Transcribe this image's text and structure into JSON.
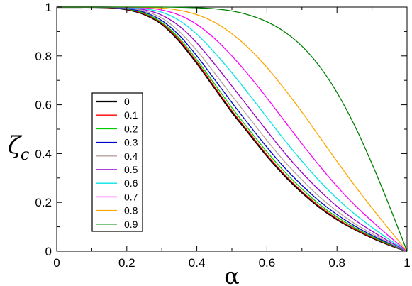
{
  "chart_data": {
    "type": "line",
    "xlabel": "α",
    "ylabel": "ζ",
    "ylabel_sub": "c",
    "xlim": [
      0,
      1
    ],
    "ylim": [
      0,
      1
    ],
    "x_ticks": [
      0,
      0.2,
      0.4,
      0.6,
      0.8,
      1
    ],
    "x_tick_labels": [
      "0",
      "0.2",
      "0.4",
      "0.6",
      "0.8",
      "1"
    ],
    "y_ticks": [
      0,
      0.2,
      0.4,
      0.6,
      0.8,
      1
    ],
    "y_tick_labels": [
      "0",
      "0.2",
      "0.4",
      "0.6",
      "0.8",
      "1"
    ],
    "grid": false,
    "legend_position": "left-center",
    "x": [
      0,
      0.05,
      0.1,
      0.15,
      0.2,
      0.25,
      0.3,
      0.35,
      0.4,
      0.45,
      0.5,
      0.55,
      0.6,
      0.65,
      0.7,
      0.75,
      0.8,
      0.85,
      0.9,
      0.95,
      1.0
    ],
    "series": [
      {
        "name": "0",
        "color": "#000000",
        "values": [
          1,
          1,
          1,
          0.998,
          0.99,
          0.97,
          0.93,
          0.86,
          0.77,
          0.67,
          0.57,
          0.48,
          0.39,
          0.31,
          0.24,
          0.18,
          0.13,
          0.09,
          0.055,
          0.025,
          0
        ]
      },
      {
        "name": "0.1",
        "color": "#ff0000",
        "values": [
          1,
          1,
          1,
          0.998,
          0.991,
          0.972,
          0.933,
          0.865,
          0.775,
          0.675,
          0.576,
          0.485,
          0.395,
          0.315,
          0.245,
          0.184,
          0.133,
          0.092,
          0.057,
          0.026,
          0
        ]
      },
      {
        "name": "0.2",
        "color": "#00cc00",
        "values": [
          1,
          1,
          1,
          0.999,
          0.992,
          0.975,
          0.937,
          0.872,
          0.784,
          0.686,
          0.588,
          0.496,
          0.407,
          0.326,
          0.255,
          0.192,
          0.14,
          0.097,
          0.06,
          0.028,
          0
        ]
      },
      {
        "name": "0.3",
        "color": "#0000cc",
        "values": [
          1,
          1,
          1,
          0.999,
          0.994,
          0.979,
          0.945,
          0.884,
          0.8,
          0.705,
          0.609,
          0.516,
          0.426,
          0.343,
          0.27,
          0.205,
          0.15,
          0.104,
          0.065,
          0.031,
          0
        ]
      },
      {
        "name": "0.4",
        "color": "#b5a29b",
        "values": [
          1,
          1,
          1,
          1,
          0.996,
          0.984,
          0.955,
          0.9,
          0.822,
          0.731,
          0.637,
          0.545,
          0.454,
          0.368,
          0.292,
          0.223,
          0.164,
          0.114,
          0.072,
          0.034,
          0
        ]
      },
      {
        "name": "0.5",
        "color": "#9900cc",
        "values": [
          1,
          1,
          1,
          1,
          0.997,
          0.989,
          0.967,
          0.922,
          0.853,
          0.768,
          0.677,
          0.585,
          0.493,
          0.404,
          0.322,
          0.249,
          0.184,
          0.129,
          0.082,
          0.039,
          0
        ]
      },
      {
        "name": "0.6",
        "color": "#00e5e5",
        "values": [
          1,
          1,
          1,
          1,
          0.998,
          0.993,
          0.979,
          0.945,
          0.889,
          0.815,
          0.731,
          0.641,
          0.548,
          0.456,
          0.369,
          0.288,
          0.216,
          0.153,
          0.098,
          0.047,
          0
        ]
      },
      {
        "name": "0.7",
        "color": "#ff00ff",
        "values": [
          1,
          1,
          1,
          1,
          0.999,
          0.997,
          0.988,
          0.967,
          0.929,
          0.872,
          0.8,
          0.718,
          0.628,
          0.534,
          0.44,
          0.35,
          0.266,
          0.19,
          0.123,
          0.06,
          0
        ]
      },
      {
        "name": "0.8",
        "color": "#ffa500",
        "values": [
          1,
          1,
          1,
          1,
          1,
          0.999,
          0.996,
          0.987,
          0.969,
          0.938,
          0.891,
          0.829,
          0.753,
          0.665,
          0.57,
          0.469,
          0.368,
          0.27,
          0.177,
          0.088,
          0
        ]
      },
      {
        "name": "0.9",
        "color": "#008000",
        "values": [
          1,
          1,
          1,
          1,
          1,
          1,
          1,
          0.999,
          0.997,
          0.993,
          0.984,
          0.967,
          0.94,
          0.899,
          0.84,
          0.758,
          0.65,
          0.516,
          0.358,
          0.184,
          0
        ]
      }
    ]
  }
}
